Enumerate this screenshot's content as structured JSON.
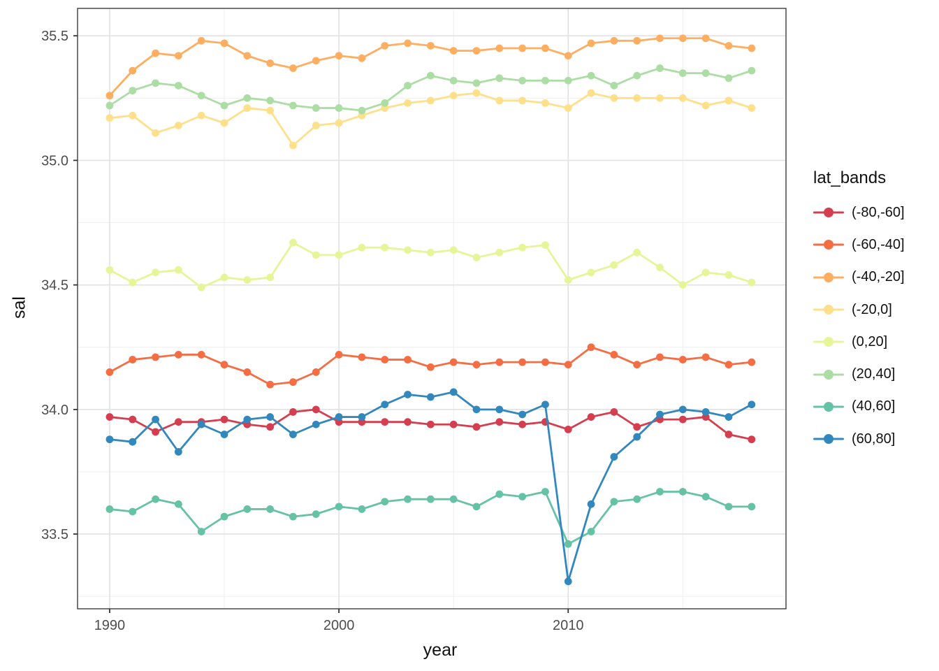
{
  "chart_data": {
    "type": "line",
    "title": "",
    "xlabel": "year",
    "ylabel": "sal",
    "legend_title": "lat_bands",
    "legend_position": "right",
    "grid": true,
    "xlim": [
      1988.6,
      2019.5
    ],
    "ylim": [
      33.2,
      35.61
    ],
    "x_ticks": [
      1990,
      2000,
      2010
    ],
    "x_tick_labels": [
      "1990",
      "2000",
      "2010"
    ],
    "x_minor_ticks": [
      1995,
      2005,
      2015
    ],
    "y_ticks": [
      35.5,
      35.0,
      34.5,
      34.0,
      33.5
    ],
    "y_tick_labels": [
      "35.5",
      "35.0",
      "34.5",
      "34.0",
      "33.5"
    ],
    "y_minor_ticks": [
      33.25,
      33.75,
      34.25,
      34.75,
      35.25
    ],
    "x": [
      1990,
      1991,
      1992,
      1993,
      1994,
      1995,
      1996,
      1997,
      1998,
      1999,
      2000,
      2001,
      2002,
      2003,
      2004,
      2005,
      2006,
      2007,
      2008,
      2009,
      2010,
      2011,
      2012,
      2013,
      2014,
      2015,
      2016,
      2017,
      2018
    ],
    "series": [
      {
        "name": "(-80,-60]",
        "color": "#d53e4f",
        "values": [
          33.97,
          33.96,
          33.91,
          33.95,
          33.95,
          33.96,
          33.94,
          33.93,
          33.99,
          34.0,
          33.95,
          33.95,
          33.95,
          33.95,
          33.94,
          33.94,
          33.93,
          33.95,
          33.94,
          33.95,
          33.92,
          33.97,
          33.99,
          33.93,
          33.96,
          33.96,
          33.97,
          33.9,
          33.88
        ]
      },
      {
        "name": "(-60,-40]",
        "color": "#f46d43",
        "values": [
          34.15,
          34.2,
          34.21,
          34.22,
          34.22,
          34.18,
          34.15,
          34.1,
          34.11,
          34.15,
          34.22,
          34.21,
          34.2,
          34.2,
          34.17,
          34.19,
          34.18,
          34.19,
          34.19,
          34.19,
          34.18,
          34.25,
          34.22,
          34.18,
          34.21,
          34.2,
          34.21,
          34.18,
          34.19
        ]
      },
      {
        "name": "(-40,-20]",
        "color": "#fdae61",
        "values": [
          35.26,
          35.36,
          35.43,
          35.42,
          35.48,
          35.47,
          35.42,
          35.39,
          35.37,
          35.4,
          35.42,
          35.41,
          35.46,
          35.47,
          35.46,
          35.44,
          35.44,
          35.45,
          35.45,
          35.45,
          35.42,
          35.47,
          35.48,
          35.48,
          35.49,
          35.49,
          35.49,
          35.46,
          35.45
        ]
      },
      {
        "name": "(-20,0]",
        "color": "#fee08b",
        "values": [
          35.17,
          35.18,
          35.11,
          35.14,
          35.18,
          35.15,
          35.21,
          35.2,
          35.06,
          35.14,
          35.15,
          35.18,
          35.21,
          35.23,
          35.24,
          35.26,
          35.27,
          35.24,
          35.24,
          35.23,
          35.21,
          35.27,
          35.25,
          35.25,
          35.25,
          35.25,
          35.22,
          35.24,
          35.21
        ]
      },
      {
        "name": "(0,20]",
        "color": "#e6f598",
        "values": [
          34.56,
          34.51,
          34.55,
          34.56,
          34.49,
          34.53,
          34.52,
          34.53,
          34.67,
          34.62,
          34.62,
          34.65,
          34.65,
          34.64,
          34.63,
          34.64,
          34.61,
          34.63,
          34.65,
          34.66,
          34.52,
          34.55,
          34.58,
          34.63,
          34.57,
          34.5,
          34.55,
          34.54,
          34.51
        ]
      },
      {
        "name": "(20,40]",
        "color": "#abdda4",
        "values": [
          35.22,
          35.28,
          35.31,
          35.3,
          35.26,
          35.22,
          35.25,
          35.24,
          35.22,
          35.21,
          35.21,
          35.2,
          35.23,
          35.3,
          35.34,
          35.32,
          35.31,
          35.33,
          35.32,
          35.32,
          35.32,
          35.34,
          35.3,
          35.34,
          35.37,
          35.35,
          35.35,
          35.33,
          35.36
        ]
      },
      {
        "name": "(40,60]",
        "color": "#66c2a5",
        "values": [
          33.6,
          33.59,
          33.64,
          33.62,
          33.51,
          33.57,
          33.6,
          33.6,
          33.57,
          33.58,
          33.61,
          33.6,
          33.63,
          33.64,
          33.64,
          33.64,
          33.61,
          33.66,
          33.65,
          33.67,
          33.46,
          33.51,
          33.63,
          33.64,
          33.67,
          33.67,
          33.65,
          33.61,
          33.61
        ]
      },
      {
        "name": "(60,80]",
        "color": "#3288bd",
        "values": [
          33.88,
          33.87,
          33.96,
          33.83,
          33.94,
          33.9,
          33.96,
          33.97,
          33.9,
          33.94,
          33.97,
          33.97,
          34.02,
          34.06,
          34.05,
          34.07,
          34.0,
          34.0,
          33.98,
          34.02,
          33.31,
          33.62,
          33.81,
          33.89,
          33.98,
          34.0,
          33.99,
          33.97,
          34.02
        ]
      }
    ],
    "style": {
      "background": "#ffffff",
      "panel_background": "#ffffff",
      "panel_border": "#3c3c3c",
      "grid_major": "#e2e2e2",
      "grid_minor": "#ededed",
      "tick_color": "#333333",
      "tick_label_color": "#4d4d4d",
      "axis_title_color": "#111111",
      "line_width": 2.8,
      "point_radius": 5.4
    }
  }
}
